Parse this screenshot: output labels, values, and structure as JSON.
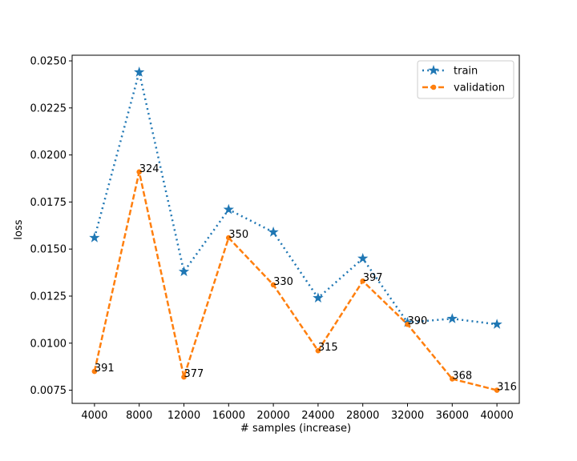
{
  "chart_data": {
    "type": "line",
    "xlabel": "# samples (increase)",
    "ylabel": "loss",
    "x": [
      4000,
      8000,
      12000,
      16000,
      20000,
      24000,
      28000,
      32000,
      36000,
      40000
    ],
    "x_ticks": [
      "4000",
      "8000",
      "12000",
      "16000",
      "20000",
      "24000",
      "28000",
      "32000",
      "36000",
      "40000"
    ],
    "ylim": [
      0.0068,
      0.0253
    ],
    "y_ticks": [
      "0.0075",
      "0.0100",
      "0.0125",
      "0.0150",
      "0.0175",
      "0.0200",
      "0.0225",
      "0.0250"
    ],
    "legend_position": "top-right",
    "grid": false,
    "series": [
      {
        "name": "train",
        "color": "#1f77b4",
        "line_style": "dotted",
        "marker": "star",
        "values": [
          0.0156,
          0.0244,
          0.0138,
          0.0171,
          0.0159,
          0.0124,
          0.0145,
          0.0111,
          0.0113,
          0.011
        ]
      },
      {
        "name": "validation",
        "color": "#ff7f0e",
        "line_style": "dashed",
        "marker": "circle",
        "values": [
          0.0085,
          0.0191,
          0.0082,
          0.0156,
          0.0131,
          0.0096,
          0.0133,
          0.011,
          0.0081,
          0.0075
        ],
        "point_labels": [
          "391",
          "324",
          "377",
          "350",
          "330",
          "315",
          "397",
          "390",
          "368",
          "316"
        ]
      }
    ]
  }
}
